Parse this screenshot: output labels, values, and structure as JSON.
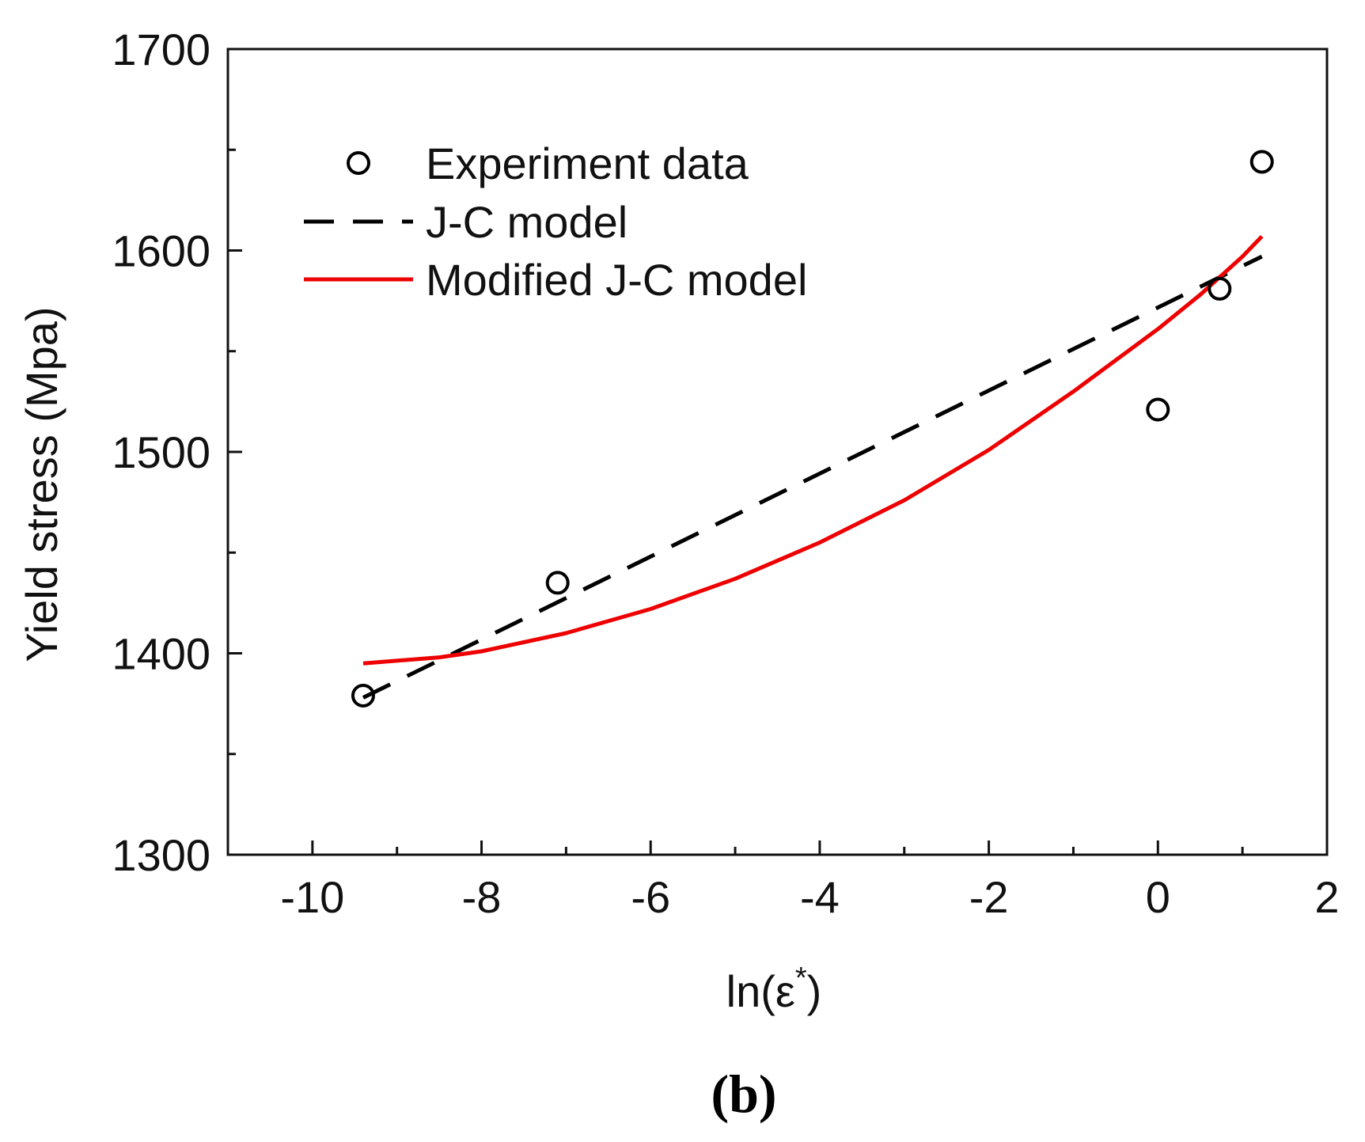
{
  "chart_data": {
    "type": "scatter",
    "title": "",
    "xlabel": "ln(ε*)",
    "xlabel_base": "ln(ε",
    "xlabel_sup": "*",
    "xlabel_close": ")",
    "ylabel": "Yield stress (Mpa)",
    "xlim": [
      -11,
      2
    ],
    "ylim": [
      1300,
      1700
    ],
    "x_major_ticks": [
      -10,
      -8,
      -6,
      -4,
      -2,
      0,
      2
    ],
    "x_tick_labels": [
      "-10",
      "-8",
      "-6",
      "-4",
      "-2",
      "0",
      "2"
    ],
    "y_major_ticks": [
      1300,
      1400,
      1500,
      1600,
      1700
    ],
    "y_tick_labels": [
      "1300",
      "1400",
      "1500",
      "1600",
      "1700"
    ],
    "x_minor_ticks": [
      -9,
      -7,
      -5,
      -3,
      -1,
      1
    ],
    "y_minor_ticks": [
      1350,
      1450,
      1550,
      1650
    ],
    "grid": false,
    "legend_position": "top-left",
    "panel_label": "(b)",
    "series": [
      {
        "name": "Experiment data",
        "kind": "scatter",
        "marker": "open-circle",
        "color": "#000000",
        "x": [
          -9.4,
          -7.1,
          0,
          0.73,
          1.23
        ],
        "y": [
          1379,
          1435,
          1521,
          1581,
          1644
        ]
      },
      {
        "name": "J-C model",
        "kind": "line",
        "style": "dashed",
        "color": "#000000",
        "x": [
          -9.4,
          1.23
        ],
        "y": [
          1378,
          1597
        ]
      },
      {
        "name": "Modified J-C model",
        "kind": "line",
        "style": "solid",
        "color": "#ee0000",
        "x": [
          -9.4,
          -8.5,
          -8,
          -7,
          -6,
          -5,
          -4,
          -3,
          -2,
          -1,
          0,
          0.5,
          1,
          1.23
        ],
        "y": [
          1395,
          1398,
          1401,
          1410,
          1422,
          1437,
          1455,
          1476,
          1501,
          1530,
          1561,
          1578,
          1597,
          1607
        ]
      }
    ]
  }
}
